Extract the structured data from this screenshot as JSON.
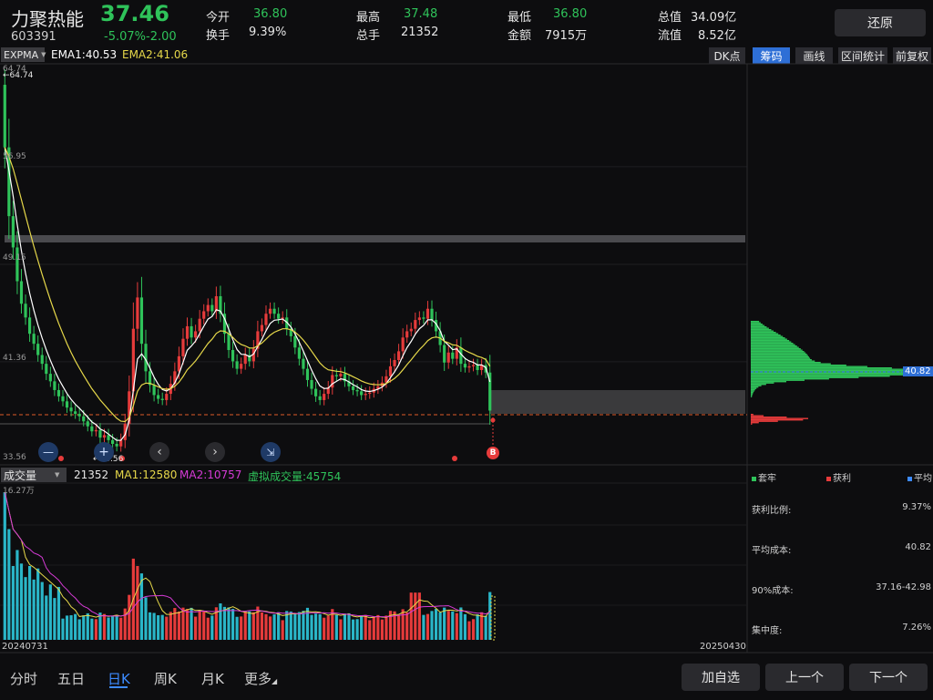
{
  "header": {
    "name": "力聚热能",
    "code": "603391",
    "price": "37.46",
    "change_pct": "-5.07%",
    "change": "-2.00",
    "open_label": "今开",
    "open": "36.80",
    "turnover_label": "换手",
    "turnover": "9.39%",
    "high_label": "最高",
    "high": "37.48",
    "volume_label": "总手",
    "volume": "21352",
    "low_label": "最低",
    "low": "36.80",
    "amount_label": "金额",
    "amount": "7915万",
    "mktcap_label": "总值",
    "mktcap": "34.09亿",
    "float_label": "流值",
    "float": "8.52亿",
    "restore": "还原"
  },
  "toolbar": {
    "indicator": "EXPMA",
    "ema1": "EMA1:40.53",
    "ema2": "EMA2:41.06",
    "dk": "DK点",
    "chips": "筹码",
    "draw": "画线",
    "range": "区间统计",
    "adjust": "前复权"
  },
  "price_axis": {
    "top": "64.74",
    "l2": "56.95",
    "l3": "49.15",
    "l4": "41.36",
    "bottom": "33.56",
    "high_marker": "←64.74",
    "low_marker": "←33.56",
    "chip_price": "40.82"
  },
  "volume_panel": {
    "selector": "成交量",
    "vol": "21352",
    "ma1": "MA1:12580",
    "ma2": "MA2:10757",
    "virtual": "虚拟成交量:45754",
    "max": "16.27万",
    "start_date": "20240731",
    "end_date": "20250430"
  },
  "chip_stats": {
    "legend_trap": "套牢",
    "legend_profit": "获利",
    "legend_avg": "平均",
    "profit_ratio_label": "获利比例:",
    "profit_ratio": "9.37%",
    "avg_cost_label": "平均成本:",
    "avg_cost": "40.82",
    "cost90_label": "90%成本:",
    "cost90": "37.16-42.98",
    "concentration_label": "集中度:",
    "concentration": "7.26%"
  },
  "bottom_nav": {
    "tabs": [
      "分时",
      "五日",
      "日K",
      "周K",
      "月K",
      "更多"
    ],
    "add_watch": "加自选",
    "prev": "上一个",
    "next": "下一个"
  },
  "colors": {
    "up": "#e63b3b",
    "down": "#2fc35a",
    "ema1": "#ffffff",
    "ema2": "#e6d84a",
    "vol_ma2": "#d63bd6",
    "accent": "#3d8bff"
  },
  "chart_data": {
    "type": "candlestick",
    "ylim": [
      33.56,
      64.74
    ],
    "x": [
      "20240731",
      "20250430"
    ],
    "close_approx": [
      58.5,
      53.0,
      50.5,
      47.8,
      46.0,
      44.9,
      43.6,
      42.8,
      41.9,
      41.2,
      40.4,
      39.8,
      39.1,
      38.6,
      38.2,
      37.7,
      37.4,
      37.2,
      37.0,
      36.6,
      36.2,
      35.8,
      35.9,
      35.3,
      35.5,
      35.1,
      34.8,
      34.6,
      35.1,
      36.4,
      39.0,
      44.0,
      46.5,
      42.8,
      40.6,
      39.5,
      38.7,
      38.4,
      38.3,
      38.8,
      39.6,
      40.6,
      41.8,
      43.2,
      44.2,
      43.3,
      43.8,
      44.8,
      45.4,
      45.9,
      45.4,
      46.6,
      45.2,
      43.6,
      42.3,
      41.4,
      40.8,
      41.2,
      41.9,
      41.4,
      42.4,
      43.8,
      44.3,
      45.2,
      45.6,
      45.2,
      44.8,
      44.9,
      44.0,
      43.4,
      42.5,
      41.6,
      40.8,
      39.9,
      39.2,
      38.6,
      38.3,
      38.8,
      39.3,
      40.3,
      40.2,
      40.4,
      39.8,
      39.4,
      39.1,
      39.0,
      38.7,
      38.8,
      38.9,
      39.2,
      39.4,
      39.7,
      40.2,
      41.0,
      41.5,
      42.2,
      43.3,
      43.8,
      44.0,
      44.7,
      44.9,
      44.8,
      45.6,
      44.7,
      43.8,
      42.7,
      41.3,
      42.1,
      41.6,
      42.5,
      41.2,
      40.9,
      41.0,
      41.1,
      40.7,
      41.1,
      40.5,
      37.46
    ],
    "ema1_last": 40.53,
    "ema2_last": 41.06,
    "volume_max": "16.27万"
  }
}
